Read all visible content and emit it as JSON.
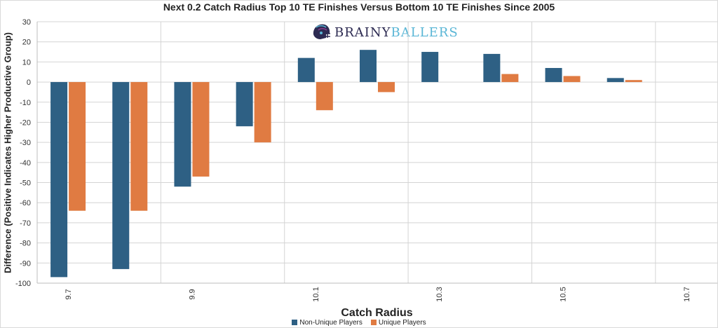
{
  "chart_data": {
    "type": "bar",
    "title": "Next 0.2 Catch Radius Top 10 TE Finishes Versus Bottom 10 TE Finishes Since 2005",
    "xlabel": "Catch Radius",
    "ylabel": "Difference (Positive Indicates Higher Productive Group)",
    "categories": [
      "9.7",
      "9.8",
      "9.9",
      "10",
      "10.1",
      "10.2",
      "10.3",
      "10.4",
      "10.5",
      "10.6",
      "10.7"
    ],
    "x_tick_labels": [
      "9.7",
      "9.9",
      "10.1",
      "10.3",
      "10.5",
      "10.7"
    ],
    "ylim": [
      -100,
      30
    ],
    "y_ticks": [
      30,
      20,
      10,
      0,
      -10,
      -20,
      -30,
      -40,
      -50,
      -60,
      -70,
      -80,
      -90,
      -100
    ],
    "grid": true,
    "legend_position": "bottom",
    "series": [
      {
        "name": "Non-Unique Players",
        "color": "#2e6084",
        "values": [
          -97,
          -93,
          -52,
          -22,
          12,
          16,
          15,
          14,
          7,
          2,
          null
        ]
      },
      {
        "name": "Unique Players",
        "color": "#e07b42",
        "values": [
          -64,
          -64,
          -47,
          -30,
          -14,
          -5,
          null,
          4,
          3,
          1,
          null
        ]
      }
    ]
  },
  "logo": {
    "word_a": "BRAINY",
    "word_b": "BALLERS"
  }
}
